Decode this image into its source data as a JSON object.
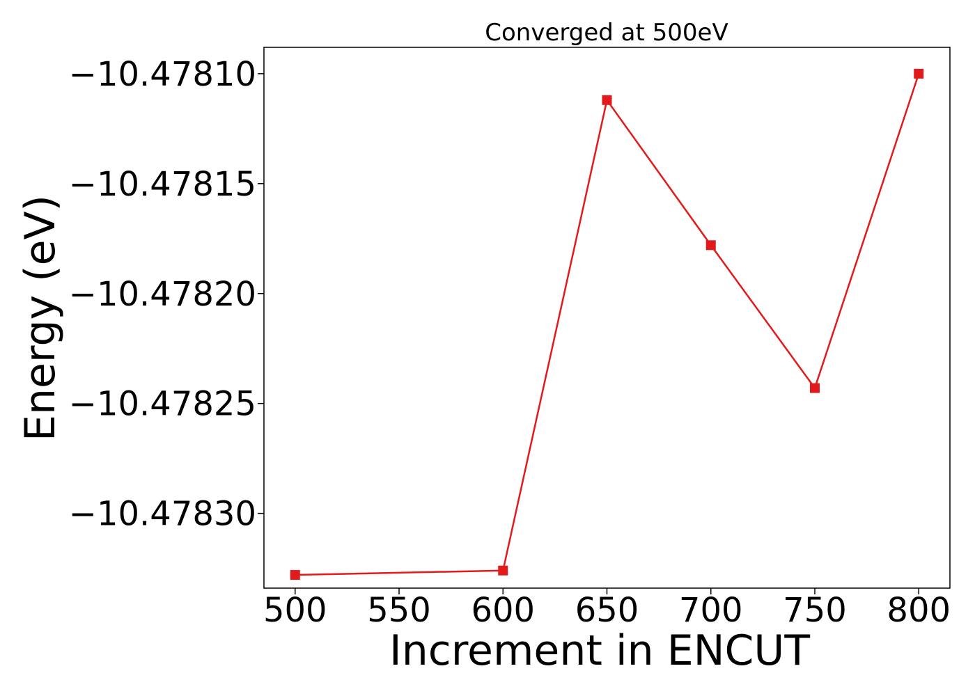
{
  "chart_data": {
    "type": "line",
    "title": "Converged at 500eV",
    "xlabel": "Increment in ENCUT",
    "ylabel": "Energy (eV)",
    "x": [
      500,
      600,
      650,
      700,
      750,
      800
    ],
    "series": [
      {
        "values": [
          -10.478328,
          -10.478326,
          -10.478112,
          -10.478178,
          -10.478243,
          -10.4781
        ],
        "color": "#e31a1c",
        "marker": "square"
      }
    ],
    "xlim": [
      485,
      815
    ],
    "ylim": [
      -10.478334,
      -10.478088
    ],
    "xticks": [
      500,
      550,
      600,
      650,
      700,
      750,
      800
    ],
    "yticks": [
      -10.4781,
      -10.47815,
      -10.4782,
      -10.47825,
      -10.4783
    ],
    "ytick_labels": [
      "−10.47810",
      "−10.47815",
      "−10.47820",
      "−10.47825",
      "−10.47830"
    ],
    "grid": false,
    "legend": false
  }
}
